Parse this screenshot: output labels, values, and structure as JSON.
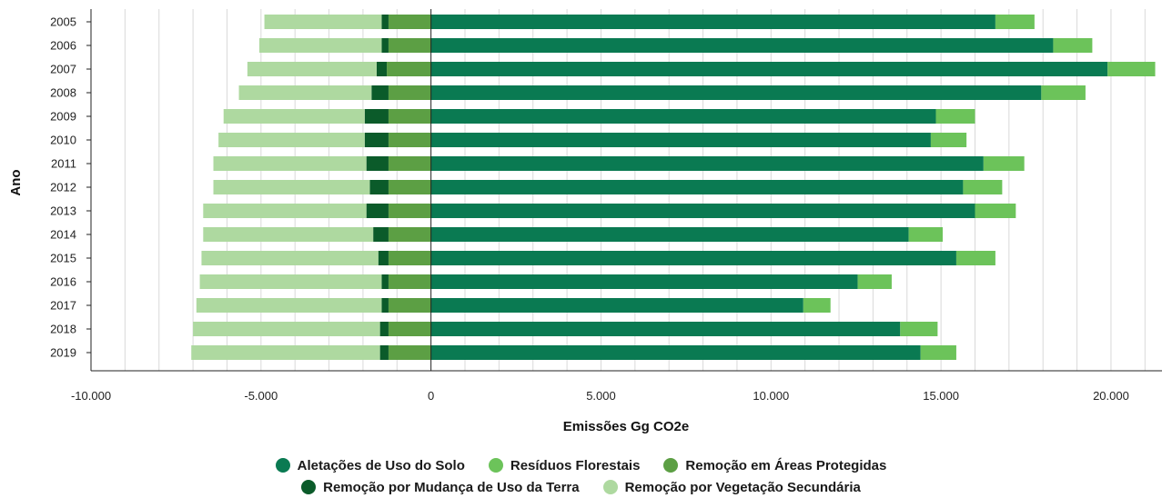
{
  "chart_data": {
    "type": "bar",
    "orientation": "horizontal",
    "stacked": true,
    "xlabel": "Emissões Gg CO2e",
    "ylabel": "Ano",
    "xlim": [
      -10000,
      21500
    ],
    "xticks": [
      -10000,
      -5000,
      0,
      5000,
      10000,
      15000,
      20000
    ],
    "xtick_labels": [
      "-10.000",
      "-5.000",
      "0",
      "5.000",
      "10.000",
      "15.000",
      "20.000"
    ],
    "grid": "vertical",
    "legend_position": "bottom",
    "categories": [
      "2005",
      "2006",
      "2007",
      "2008",
      "2009",
      "2010",
      "2011",
      "2012",
      "2013",
      "2014",
      "2015",
      "2016",
      "2017",
      "2018",
      "2019"
    ],
    "series": [
      {
        "name": "Aletações de Uso do Solo",
        "color": "#0a7a52",
        "values": [
          16600,
          18300,
          19900,
          17950,
          14850,
          14700,
          16250,
          15650,
          16000,
          14050,
          15450,
          12550,
          10950,
          13800,
          14400
        ]
      },
      {
        "name": "Resíduos Florestais",
        "color": "#6cc35a",
        "values": [
          1150,
          1150,
          1400,
          1300,
          1150,
          1050,
          1200,
          1150,
          1200,
          1000,
          1150,
          1000,
          800,
          1100,
          1050
        ]
      },
      {
        "name": "Remoção em Áreas Protegidas",
        "color": "#5c9f44",
        "values": [
          -1250,
          -1250,
          -1300,
          -1250,
          -1250,
          -1250,
          -1250,
          -1250,
          -1250,
          -1250,
          -1250,
          -1250,
          -1250,
          -1250,
          -1250
        ]
      },
      {
        "name": "Remoção por Mudança de Uso da Terra",
        "color": "#0b5b2a",
        "values": [
          -200,
          -200,
          -300,
          -500,
          -700,
          -700,
          -650,
          -550,
          -650,
          -450,
          -300,
          -200,
          -200,
          -250,
          -250
        ]
      },
      {
        "name": "Remoção por Vegetação Secundária",
        "color": "#aed9a0",
        "values": [
          -3450,
          -3600,
          -3800,
          -3900,
          -4150,
          -4300,
          -4500,
          -4600,
          -4800,
          -5000,
          -5200,
          -5350,
          -5450,
          -5500,
          -5550
        ]
      }
    ]
  },
  "legend": {
    "row1": [
      {
        "label": "Aletações de Uso do Solo",
        "color": "#0a7a52"
      },
      {
        "label": "Resíduos Florestais",
        "color": "#6cc35a"
      },
      {
        "label": "Remoção em Áreas Protegidas",
        "color": "#5c9f44"
      }
    ],
    "row2": [
      {
        "label": "Remoção por Mudança de Uso da Terra",
        "color": "#0b5b2a"
      },
      {
        "label": "Remoção por Vegetação Secundária",
        "color": "#aed9a0"
      }
    ]
  }
}
